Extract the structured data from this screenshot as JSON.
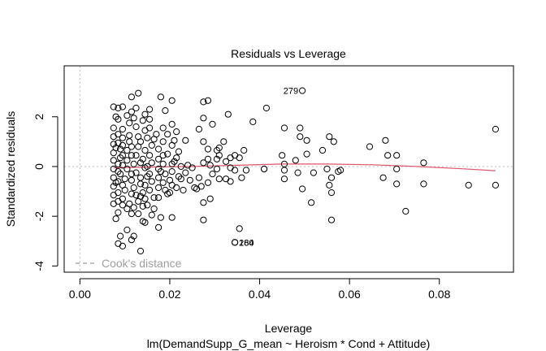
{
  "chart_data": {
    "type": "scatter",
    "title": "Residuals vs Leverage",
    "xlabel": "Leverage",
    "ylabel": "Standardized residuals",
    "subtitle": "lm(DemandSupp_G_mean ~ Heroism * Cond + Attitude)",
    "xlim": [
      -0.0035,
      0.0965
    ],
    "ylim": [
      -4.25,
      4.05
    ],
    "x_ticks": [
      0.0,
      0.02,
      0.04,
      0.06,
      0.08
    ],
    "x_tick_labels": [
      "0.00",
      "0.02",
      "0.04",
      "0.06",
      "0.08"
    ],
    "y_ticks": [
      -4,
      -2,
      0,
      2
    ],
    "y_tick_labels": [
      "-4",
      "-2",
      "0",
      "2"
    ],
    "legend": {
      "label": "Cook's distance",
      "position": "bottom-left",
      "line_style": "dashed",
      "color": "#9e9e9e"
    },
    "smoother_color": "#df536b",
    "reference_line_color": "#bdbdbd",
    "smoother": {
      "x": [
        0.0075,
        0.015,
        0.025,
        0.035,
        0.045,
        0.055,
        0.065,
        0.075,
        0.085,
        0.0925
      ],
      "y": [
        -0.05,
        -0.02,
        0.0,
        0.05,
        0.1,
        0.1,
        0.07,
        0.0,
        -0.09,
        -0.17
      ]
    },
    "labeled_points": [
      {
        "label": "279",
        "x": 0.0495,
        "y": 3.05
      },
      {
        "label": "260",
        "x": 0.0345,
        "y": -3.05
      },
      {
        "label": "184",
        "x": 0.0345,
        "y": -3.05
      }
    ],
    "points": [
      [
        0.0075,
        2.4
      ],
      [
        0.0085,
        2.35
      ],
      [
        0.0115,
        2.8
      ],
      [
        0.013,
        2.95
      ],
      [
        0.018,
        2.8
      ],
      [
        0.0205,
        2.65
      ],
      [
        0.0275,
        2.6
      ],
      [
        0.0285,
        2.65
      ],
      [
        0.033,
        2.1
      ],
      [
        0.0385,
        1.8
      ],
      [
        0.0415,
        2.35
      ],
      [
        0.0455,
        1.55
      ],
      [
        0.049,
        1.55
      ],
      [
        0.049,
        1.2
      ],
      [
        0.0505,
        1.05
      ],
      [
        0.0555,
        1.2
      ],
      [
        0.0565,
        1.0
      ],
      [
        0.0645,
        0.8
      ],
      [
        0.068,
        1.05
      ],
      [
        0.0685,
        0.45
      ],
      [
        0.0705,
        0.45
      ],
      [
        0.0765,
        0.15
      ],
      [
        0.0925,
        1.5
      ],
      [
        0.0275,
        1.95
      ],
      [
        0.0295,
        1.7
      ],
      [
        0.0265,
        1.5
      ],
      [
        0.0275,
        1.0
      ],
      [
        0.032,
        1.0
      ],
      [
        0.0305,
        0.65
      ],
      [
        0.0285,
        0.7
      ],
      [
        0.0355,
        0.35
      ],
      [
        0.0365,
        0.65
      ],
      [
        0.031,
        0.45
      ],
      [
        0.0325,
        0.2
      ],
      [
        0.0335,
        -0.05
      ],
      [
        0.0345,
        -0.15
      ],
      [
        0.037,
        -0.15
      ],
      [
        0.041,
        -0.1
      ],
      [
        0.045,
        0.45
      ],
      [
        0.0455,
        0.1
      ],
      [
        0.0455,
        -0.15
      ],
      [
        0.048,
        0.25
      ],
      [
        0.0485,
        -0.25
      ],
      [
        0.0505,
        0.5
      ],
      [
        0.052,
        -0.25
      ],
      [
        0.054,
        0.65
      ],
      [
        0.055,
        -0.1
      ],
      [
        0.056,
        -0.45
      ],
      [
        0.058,
        -0.15
      ],
      [
        0.0575,
        -0.2
      ],
      [
        0.0675,
        -0.45
      ],
      [
        0.0705,
        -0.1
      ],
      [
        0.0705,
        -0.7
      ],
      [
        0.0765,
        -0.7
      ],
      [
        0.0865,
        -0.75
      ],
      [
        0.0925,
        -0.75
      ],
      [
        0.0725,
        -1.8
      ],
      [
        0.056,
        -1.05
      ],
      [
        0.0555,
        -0.75
      ],
      [
        0.0515,
        -1.45
      ],
      [
        0.0495,
        -0.9
      ],
      [
        0.0455,
        -0.5
      ],
      [
        0.041,
        -0.1
      ],
      [
        0.036,
        -0.45
      ],
      [
        0.0335,
        -0.6
      ],
      [
        0.0325,
        -0.5
      ],
      [
        0.031,
        -0.5
      ],
      [
        0.0285,
        -0.65
      ],
      [
        0.027,
        -0.8
      ],
      [
        0.029,
        -1.3
      ],
      [
        0.026,
        -0.9
      ],
      [
        0.0275,
        -1.45
      ],
      [
        0.0275,
        -2.15
      ],
      [
        0.0355,
        -2.5
      ],
      [
        0.056,
        -2.15
      ],
      [
        0.0205,
        -2.05
      ],
      [
        0.0175,
        -2.45
      ],
      [
        0.018,
        -2.05
      ],
      [
        0.0165,
        -1.7
      ],
      [
        0.014,
        -2.2
      ],
      [
        0.012,
        -2.8
      ],
      [
        0.0105,
        -2.55
      ],
      [
        0.009,
        -2.8
      ],
      [
        0.0085,
        -3.1
      ],
      [
        0.0095,
        -3.2
      ],
      [
        0.0115,
        -2.95
      ],
      [
        0.0135,
        -3.4
      ],
      [
        0.0145,
        -2.25
      ],
      [
        0.008,
        -2.1
      ],
      [
        0.0085,
        -1.85
      ],
      [
        0.0095,
        -1.55
      ],
      [
        0.012,
        -1.65
      ],
      [
        0.013,
        -1.4
      ],
      [
        0.015,
        -1.55
      ],
      [
        0.0175,
        -1.25
      ],
      [
        0.0195,
        -1.1
      ],
      [
        0.0215,
        -0.85
      ],
      [
        0.023,
        -0.95
      ],
      [
        0.0245,
        -0.55
      ],
      [
        0.022,
        -0.4
      ],
      [
        0.02,
        -0.55
      ],
      [
        0.018,
        -0.2
      ],
      [
        0.0225,
        0.0
      ],
      [
        0.024,
        0.05
      ],
      [
        0.021,
        0.2
      ],
      [
        0.0195,
        0.5
      ],
      [
        0.022,
        0.6
      ],
      [
        0.0235,
        1.05
      ],
      [
        0.021,
        1.05
      ],
      [
        0.0195,
        1.3
      ],
      [
        0.0215,
        1.4
      ],
      [
        0.0205,
        1.7
      ],
      [
        0.019,
        2.25
      ],
      [
        0.017,
        1.3
      ],
      [
        0.0155,
        1.55
      ],
      [
        0.014,
        1.85
      ],
      [
        0.0125,
        1.6
      ],
      [
        0.011,
        1.25
      ],
      [
        0.0095,
        1.5
      ],
      [
        0.0085,
        1.9
      ],
      [
        0.0075,
        1.55
      ],
      [
        0.0075,
        1.2
      ],
      [
        0.0075,
        0.9
      ],
      [
        0.0075,
        0.55
      ],
      [
        0.0075,
        0.25
      ],
      [
        0.0075,
        -0.1
      ],
      [
        0.0075,
        -0.45
      ],
      [
        0.0075,
        -0.8
      ],
      [
        0.0075,
        -1.15
      ],
      [
        0.0075,
        -1.5
      ],
      [
        0.008,
        2.0
      ],
      [
        0.0085,
        1.3
      ],
      [
        0.0085,
        0.95
      ],
      [
        0.009,
        0.7
      ],
      [
        0.009,
        0.35
      ],
      [
        0.009,
        -0.3
      ],
      [
        0.0085,
        -0.6
      ],
      [
        0.0085,
        -1.05
      ],
      [
        0.0095,
        -1.3
      ],
      [
        0.01,
        -0.95
      ],
      [
        0.01,
        -0.5
      ],
      [
        0.0105,
        -0.1
      ],
      [
        0.0105,
        0.25
      ],
      [
        0.0105,
        0.65
      ],
      [
        0.011,
        1.0
      ],
      [
        0.011,
        1.75
      ],
      [
        0.0105,
        2.05
      ],
      [
        0.0095,
        2.4
      ],
      [
        0.0115,
        2.2
      ],
      [
        0.0125,
        2.35
      ],
      [
        0.012,
        1.95
      ],
      [
        0.013,
        1.2
      ],
      [
        0.013,
        0.8
      ],
      [
        0.0125,
        0.45
      ],
      [
        0.012,
        0.1
      ],
      [
        0.0125,
        -0.25
      ],
      [
        0.0115,
        -0.55
      ],
      [
        0.012,
        -0.85
      ],
      [
        0.0125,
        -1.15
      ],
      [
        0.011,
        -1.5
      ],
      [
        0.0115,
        -1.9
      ],
      [
        0.013,
        -1.9
      ],
      [
        0.014,
        -1.6
      ],
      [
        0.014,
        -1.05
      ],
      [
        0.0145,
        -0.75
      ],
      [
        0.0135,
        -0.45
      ],
      [
        0.0145,
        -0.05
      ],
      [
        0.014,
        0.3
      ],
      [
        0.0145,
        0.65
      ],
      [
        0.0135,
        1.0
      ],
      [
        0.015,
        1.15
      ],
      [
        0.0145,
        1.45
      ],
      [
        0.0145,
        2.1
      ],
      [
        0.0155,
        2.3
      ],
      [
        0.0155,
        1.9
      ],
      [
        0.0165,
        1.1
      ],
      [
        0.016,
        0.85
      ],
      [
        0.0155,
        0.45
      ],
      [
        0.016,
        0.15
      ],
      [
        0.0155,
        -0.3
      ],
      [
        0.016,
        -0.6
      ],
      [
        0.0155,
        -0.95
      ],
      [
        0.0165,
        -1.25
      ],
      [
        0.016,
        -1.95
      ],
      [
        0.0175,
        -0.85
      ],
      [
        0.0175,
        -0.45
      ],
      [
        0.0175,
        -0.1
      ],
      [
        0.0175,
        0.3
      ],
      [
        0.0175,
        0.7
      ],
      [
        0.0185,
        1.0
      ],
      [
        0.0185,
        1.55
      ],
      [
        0.0185,
        0.45
      ],
      [
        0.0185,
        0.1
      ],
      [
        0.019,
        -0.3
      ],
      [
        0.0185,
        -0.65
      ],
      [
        0.019,
        -0.95
      ],
      [
        0.02,
        -1.05
      ],
      [
        0.0205,
        -0.75
      ],
      [
        0.0205,
        -0.2
      ],
      [
        0.0205,
        0.1
      ],
      [
        0.0205,
        0.85
      ],
      [
        0.0215,
        0.35
      ],
      [
        0.0225,
        -0.5
      ],
      [
        0.0235,
        -0.25
      ],
      [
        0.025,
        -0.05
      ],
      [
        0.0265,
        -0.45
      ],
      [
        0.0255,
        -0.85
      ],
      [
        0.0275,
        0.15
      ],
      [
        0.0285,
        0.3
      ],
      [
        0.029,
        0.05
      ],
      [
        0.0295,
        -0.3
      ],
      [
        0.0305,
        -0.1
      ],
      [
        0.0305,
        0.3
      ],
      [
        0.031,
        0.75
      ],
      [
        0.0335,
        0.35
      ],
      [
        0.0345,
        0.45
      ],
      [
        0.0085,
        0.1
      ],
      [
        0.0085,
        -0.2
      ],
      [
        0.0095,
        0.05
      ],
      [
        0.0095,
        0.45
      ],
      [
        0.0095,
        0.85
      ],
      [
        0.0095,
        1.15
      ],
      [
        0.0095,
        -0.75
      ],
      [
        0.0115,
        -0.3
      ],
      [
        0.0115,
        0.45
      ],
      [
        0.0115,
        0.8
      ],
      [
        0.0135,
        0.15
      ],
      [
        0.0135,
        -0.7
      ],
      [
        0.015,
        0.0
      ],
      [
        0.015,
        -0.4
      ],
      [
        0.0145,
        -1.3
      ],
      [
        0.0135,
        -1.2
      ],
      [
        0.0115,
        -1.1
      ],
      [
        0.0105,
        -1.7
      ],
      [
        0.0085,
        -1.4
      ],
      [
        0.008,
        0.75
      ],
      [
        0.008,
        -0.65
      ]
    ]
  }
}
